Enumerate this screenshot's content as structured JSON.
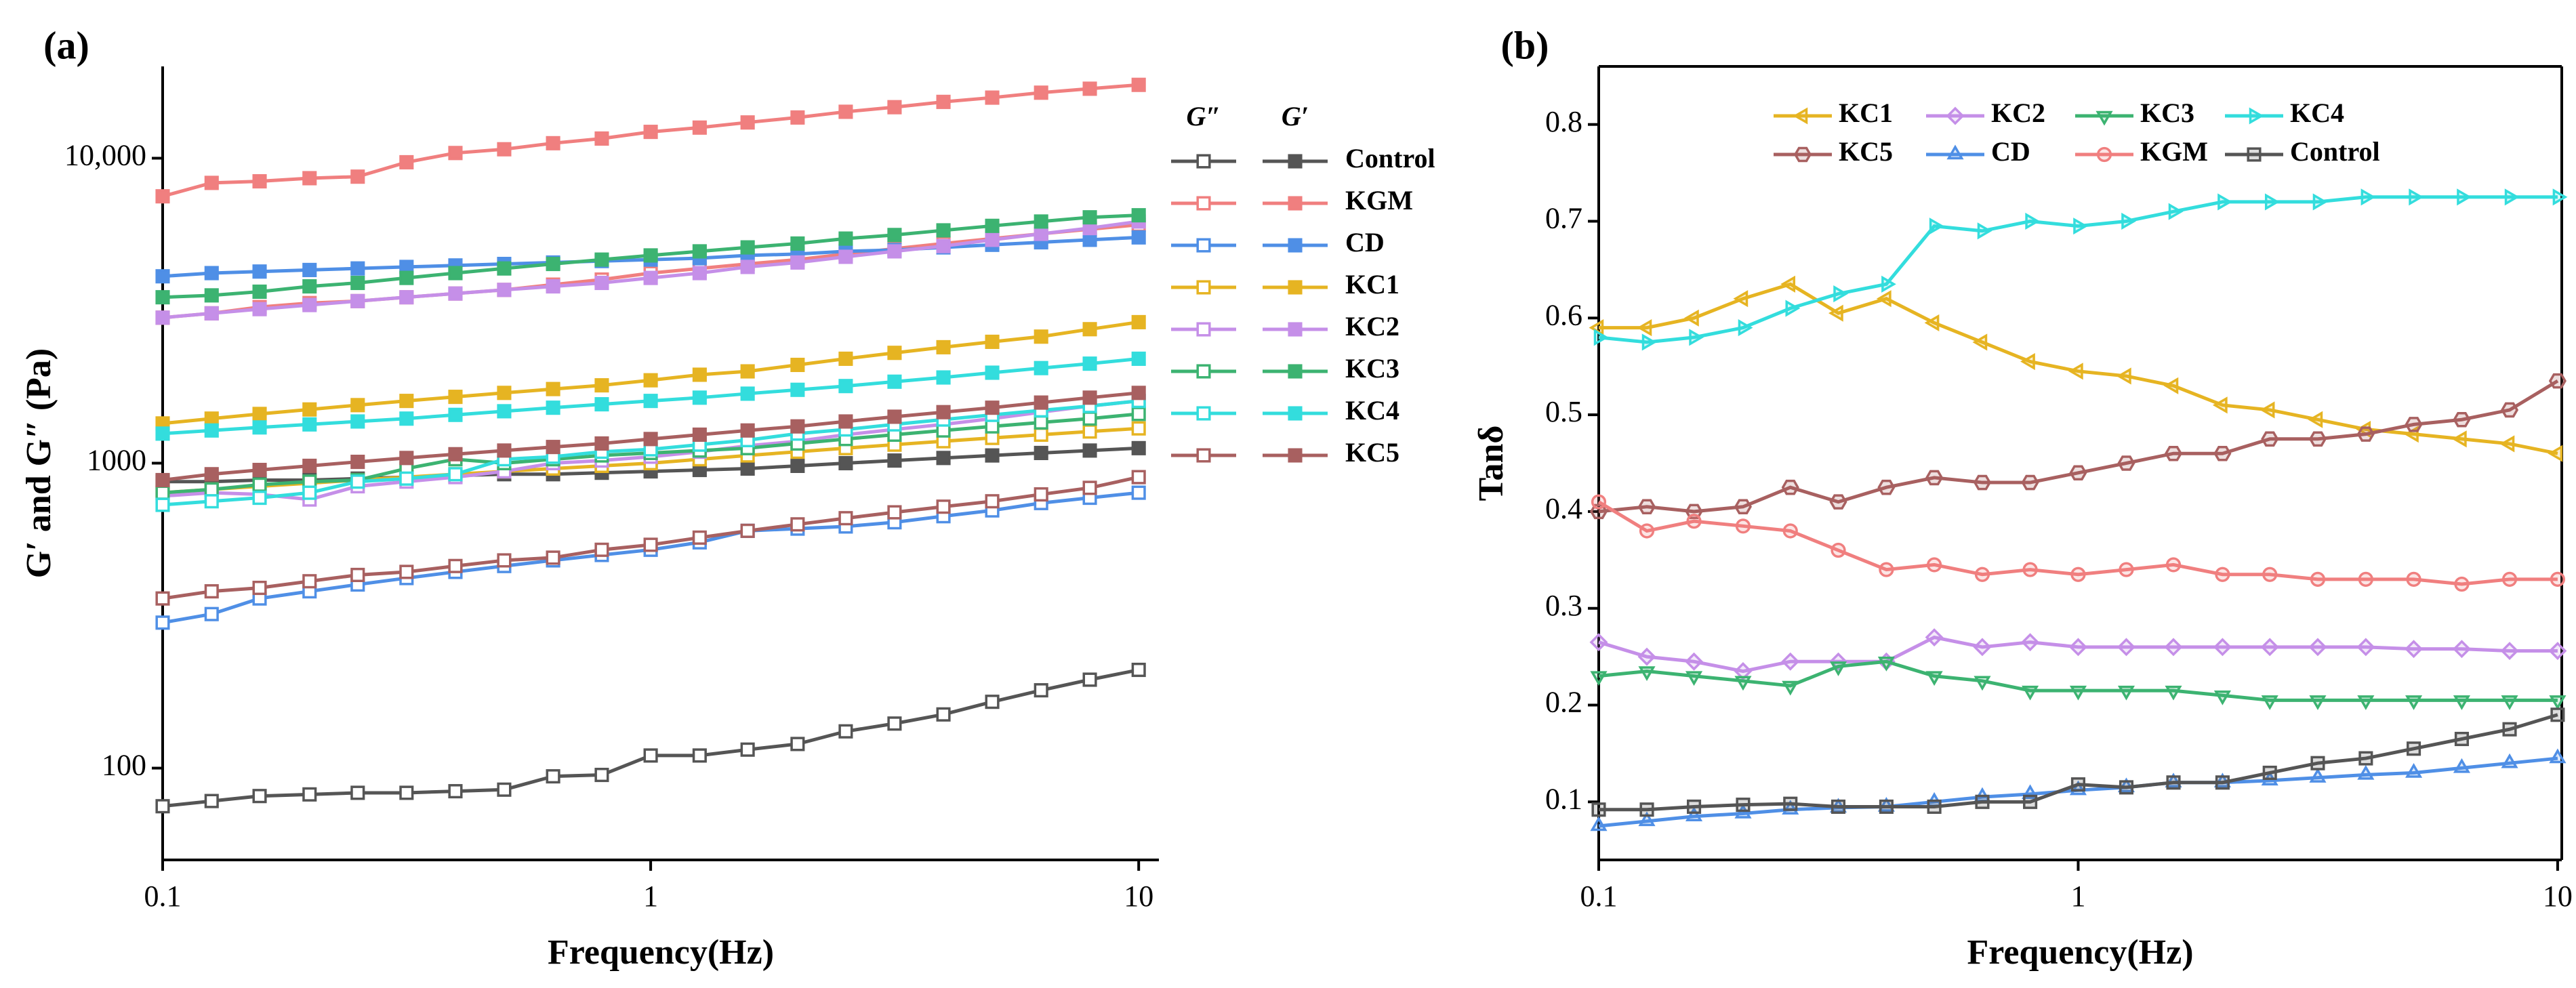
{
  "chart_data": [
    {
      "type": "line",
      "panel": "(a)",
      "xlabel": "Frequency(Hz)",
      "ylabel": "G′ and G″ (Pa)",
      "xlog": true,
      "ylog": true,
      "xlim": [
        0.1,
        11
      ],
      "ylim": [
        50,
        20000
      ],
      "xticks": [
        0.1,
        1,
        10
      ],
      "yticks": [
        100,
        1000,
        {
          "value": 10000,
          "label": "10,000"
        }
      ],
      "legend_headers": [
        "G″",
        "G′"
      ],
      "x": [
        0.1,
        0.126,
        0.158,
        0.2,
        0.251,
        0.316,
        0.398,
        0.501,
        0.631,
        0.794,
        1,
        1.26,
        1.58,
        2,
        2.51,
        3.16,
        3.98,
        5.01,
        6.31,
        7.94,
        10
      ],
      "series": [
        {
          "name": "Control",
          "color": "#555555",
          "marker": "square",
          "values": [
            870,
            870,
            880,
            880,
            890,
            900,
            910,
            920,
            920,
            930,
            940,
            950,
            960,
            980,
            1000,
            1020,
            1040,
            1060,
            1080,
            1100,
            1120
          ],
          "loss_values": [
            75,
            78,
            81,
            82,
            83,
            83,
            84,
            85,
            94,
            95,
            110,
            110,
            115,
            120,
            132,
            140,
            150,
            165,
            180,
            195,
            210
          ]
        },
        {
          "name": "KGM",
          "color": "#f07f7f",
          "marker": "square",
          "values": [
            7500,
            8300,
            8400,
            8600,
            8700,
            9700,
            10400,
            10700,
            11200,
            11600,
            12200,
            12600,
            13100,
            13600,
            14200,
            14700,
            15300,
            15800,
            16400,
            16900,
            17400
          ],
          "loss_values": [
            3000,
            3100,
            3250,
            3350,
            3400,
            3500,
            3600,
            3700,
            3850,
            4000,
            4200,
            4350,
            4500,
            4650,
            4850,
            5050,
            5250,
            5450,
            5650,
            5850,
            6050
          ]
        },
        {
          "name": "CD",
          "color": "#4f8fe6",
          "marker": "square",
          "values": [
            4100,
            4200,
            4250,
            4300,
            4350,
            4400,
            4450,
            4500,
            4550,
            4600,
            4650,
            4700,
            4800,
            4850,
            4950,
            5000,
            5100,
            5200,
            5300,
            5400,
            5500
          ],
          "loss_values": [
            300,
            320,
            360,
            380,
            400,
            420,
            440,
            460,
            480,
            500,
            520,
            550,
            600,
            610,
            620,
            640,
            670,
            700,
            740,
            770,
            800
          ]
        },
        {
          "name": "KC1",
          "color": "#e6b422",
          "marker": "square",
          "values": [
            1350,
            1400,
            1450,
            1500,
            1550,
            1600,
            1650,
            1700,
            1750,
            1800,
            1870,
            1950,
            2000,
            2100,
            2200,
            2300,
            2400,
            2500,
            2600,
            2750,
            2900
          ],
          "loss_values": [
            800,
            820,
            840,
            860,
            880,
            900,
            920,
            940,
            960,
            980,
            1000,
            1030,
            1060,
            1090,
            1120,
            1150,
            1180,
            1210,
            1240,
            1270,
            1300
          ]
        },
        {
          "name": "KC2",
          "color": "#c58fe8",
          "marker": "square",
          "values": [
            3000,
            3100,
            3200,
            3300,
            3400,
            3500,
            3600,
            3700,
            3800,
            3900,
            4050,
            4200,
            4400,
            4550,
            4750,
            4950,
            5150,
            5400,
            5650,
            5900,
            6200
          ],
          "loss_values": [
            780,
            800,
            790,
            760,
            840,
            870,
            900,
            940,
            1000,
            1020,
            1050,
            1090,
            1140,
            1180,
            1240,
            1290,
            1340,
            1400,
            1470,
            1540,
            1600
          ]
        },
        {
          "name": "KC3",
          "color": "#3cb371",
          "marker": "square",
          "values": [
            3500,
            3550,
            3650,
            3800,
            3900,
            4050,
            4200,
            4350,
            4500,
            4650,
            4800,
            4950,
            5100,
            5250,
            5450,
            5600,
            5800,
            6000,
            6200,
            6400,
            6500
          ],
          "loss_values": [
            800,
            820,
            850,
            870,
            880,
            960,
            1030,
            1000,
            1030,
            1060,
            1080,
            1100,
            1120,
            1160,
            1200,
            1240,
            1280,
            1320,
            1360,
            1400,
            1450
          ]
        },
        {
          "name": "KC4",
          "color": "#33dddd",
          "marker": "square",
          "values": [
            1250,
            1280,
            1310,
            1340,
            1370,
            1400,
            1440,
            1480,
            1520,
            1560,
            1600,
            1640,
            1690,
            1740,
            1790,
            1850,
            1910,
            1980,
            2050,
            2120,
            2200
          ],
          "loss_values": [
            730,
            750,
            770,
            800,
            870,
            890,
            920,
            1030,
            1050,
            1090,
            1110,
            1150,
            1190,
            1250,
            1290,
            1340,
            1390,
            1440,
            1490,
            1540,
            1600
          ]
        },
        {
          "name": "KC5",
          "color": "#a86060",
          "marker": "square",
          "values": [
            880,
            920,
            950,
            980,
            1010,
            1040,
            1070,
            1100,
            1130,
            1160,
            1200,
            1240,
            1280,
            1320,
            1370,
            1420,
            1470,
            1520,
            1580,
            1640,
            1700
          ],
          "loss_values": [
            360,
            380,
            390,
            410,
            430,
            440,
            460,
            480,
            490,
            520,
            540,
            570,
            600,
            630,
            660,
            690,
            720,
            750,
            790,
            830,
            900
          ]
        }
      ]
    },
    {
      "type": "line",
      "panel": "(b)",
      "xlabel": "Frequency(Hz)",
      "ylabel": "Tanδ",
      "xlog": true,
      "ylog": false,
      "xlim": [
        0.1,
        10.2
      ],
      "ylim": [
        0.04,
        0.86
      ],
      "xticks": [
        0.1,
        1,
        10
      ],
      "yticks": [
        0.1,
        0.2,
        0.3,
        0.4,
        0.5,
        0.6,
        0.7,
        0.8
      ],
      "x": [
        0.1,
        0.126,
        0.158,
        0.2,
        0.251,
        0.316,
        0.398,
        0.501,
        0.631,
        0.794,
        1,
        1.26,
        1.58,
        2,
        2.51,
        3.16,
        3.98,
        5.01,
        6.31,
        7.94,
        10
      ],
      "series": [
        {
          "name": "KC1",
          "color": "#e6b422",
          "marker": "triangle-left",
          "values": [
            0.59,
            0.59,
            0.6,
            0.62,
            0.635,
            0.605,
            0.62,
            0.595,
            0.575,
            0.555,
            0.545,
            0.54,
            0.53,
            0.51,
            0.505,
            0.495,
            0.485,
            0.48,
            0.475,
            0.47,
            0.46
          ]
        },
        {
          "name": "KC2",
          "color": "#c58fe8",
          "marker": "diamond",
          "values": [
            0.265,
            0.25,
            0.245,
            0.235,
            0.245,
            0.245,
            0.245,
            0.27,
            0.26,
            0.265,
            0.26,
            0.26,
            0.26,
            0.26,
            0.26,
            0.26,
            0.26,
            0.258,
            0.258,
            0.256,
            0.256
          ]
        },
        {
          "name": "KC3",
          "color": "#3cb371",
          "marker": "triangle-down",
          "values": [
            0.23,
            0.235,
            0.23,
            0.225,
            0.22,
            0.24,
            0.245,
            0.23,
            0.225,
            0.215,
            0.215,
            0.215,
            0.215,
            0.21,
            0.205,
            0.205,
            0.205,
            0.205,
            0.205,
            0.205,
            0.205
          ]
        },
        {
          "name": "KC4",
          "color": "#33dddd",
          "marker": "triangle-right",
          "values": [
            0.58,
            0.575,
            0.58,
            0.59,
            0.61,
            0.625,
            0.635,
            0.695,
            0.69,
            0.7,
            0.695,
            0.7,
            0.71,
            0.72,
            0.72,
            0.72,
            0.725,
            0.725,
            0.725,
            0.725,
            0.725
          ]
        },
        {
          "name": "KC5",
          "color": "#a86060",
          "marker": "hexagon",
          "values": [
            0.4,
            0.405,
            0.4,
            0.405,
            0.425,
            0.41,
            0.425,
            0.435,
            0.43,
            0.43,
            0.44,
            0.45,
            0.46,
            0.46,
            0.475,
            0.475,
            0.48,
            0.49,
            0.495,
            0.505,
            0.535
          ]
        },
        {
          "name": "CD",
          "color": "#4f8fe6",
          "marker": "triangle-up",
          "values": [
            0.075,
            0.08,
            0.085,
            0.088,
            0.092,
            0.094,
            0.095,
            0.1,
            0.105,
            0.108,
            0.112,
            0.115,
            0.12,
            0.12,
            0.122,
            0.125,
            0.128,
            0.13,
            0.135,
            0.14,
            0.145
          ]
        },
        {
          "name": "KGM",
          "color": "#f07f7f",
          "marker": "circle",
          "values": [
            0.41,
            0.38,
            0.39,
            0.385,
            0.38,
            0.36,
            0.34,
            0.345,
            0.335,
            0.34,
            0.335,
            0.34,
            0.345,
            0.335,
            0.335,
            0.33,
            0.33,
            0.33,
            0.325,
            0.33,
            0.33
          ]
        },
        {
          "name": "Control",
          "color": "#555555",
          "marker": "square",
          "values": [
            0.092,
            0.092,
            0.095,
            0.097,
            0.098,
            0.095,
            0.095,
            0.095,
            0.1,
            0.1,
            0.118,
            0.115,
            0.12,
            0.12,
            0.13,
            0.14,
            0.145,
            0.155,
            0.165,
            0.175,
            0.19
          ]
        }
      ]
    }
  ]
}
